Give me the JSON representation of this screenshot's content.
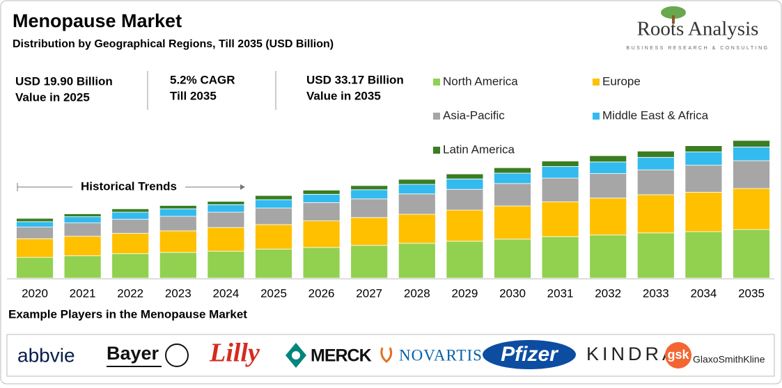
{
  "header": {
    "title": "Menopause Market",
    "subtitle": "Distribution by Geographical Regions, Till 2035 (USD Billion)"
  },
  "brand": {
    "name": "Roots Analysis",
    "tagline": "BUSINESS RESEARCH & CONSULTING"
  },
  "stats": [
    {
      "line1": "USD 19.90 Billion",
      "line2": "Value in 2025"
    },
    {
      "line1": "5.2% CAGR",
      "line2": "Till 2035"
    },
    {
      "line1": "USD 33.17 Billion",
      "line2": "Value in 2035"
    }
  ],
  "chart_data": {
    "type": "bar",
    "stacked": true,
    "annotation": "Historical Trends",
    "categories": [
      "2020",
      "2021",
      "2022",
      "2023",
      "2024",
      "2025",
      "2026",
      "2027",
      "2028",
      "2029",
      "2030",
      "2031",
      "2032",
      "2033",
      "2034",
      "2035"
    ],
    "series": [
      {
        "name": "North America",
        "color": "#92d050",
        "values": [
          5.0,
          5.4,
          5.9,
          6.2,
          6.5,
          7.0,
          7.4,
          7.9,
          8.4,
          8.9,
          9.4,
          10.0,
          10.4,
          10.9,
          11.2,
          11.7
        ]
      },
      {
        "name": "Europe",
        "color": "#ffc000",
        "values": [
          4.5,
          4.7,
          4.9,
          5.2,
          5.7,
          5.9,
          6.4,
          6.7,
          7.0,
          7.5,
          8.0,
          8.4,
          8.9,
          9.2,
          9.5,
          9.9
        ]
      },
      {
        "name": "Asia-Pacific",
        "color": "#a6a6a6",
        "values": [
          2.8,
          3.2,
          3.4,
          3.5,
          3.7,
          4.0,
          4.4,
          4.5,
          4.9,
          5.0,
          5.4,
          5.7,
          5.9,
          6.0,
          6.5,
          6.7
        ]
      },
      {
        "name": "Middle East & Africa",
        "color": "#33bbef",
        "values": [
          1.3,
          1.5,
          1.7,
          1.8,
          1.8,
          2.0,
          2.0,
          2.2,
          2.3,
          2.5,
          2.5,
          2.8,
          2.8,
          3.0,
          3.2,
          3.3
        ]
      },
      {
        "name": "Latin America",
        "color": "#3a7d22",
        "values": [
          0.8,
          0.7,
          0.8,
          0.8,
          0.8,
          1.0,
          1.0,
          1.0,
          1.2,
          1.2,
          1.3,
          1.3,
          1.5,
          1.5,
          1.5,
          1.57
        ]
      }
    ]
  },
  "players": {
    "title": "Example Players in the Menopause Market",
    "logos": [
      "abbvie",
      "Bayer",
      "Lilly",
      "MERCK",
      "NOVARTIS",
      "Pfizer",
      "KINDRA",
      "gsk",
      "GlaxoSmithKline"
    ]
  }
}
